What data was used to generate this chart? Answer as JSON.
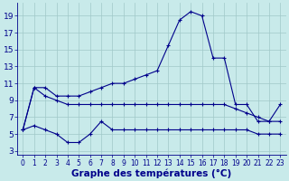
{
  "xlabel": "Graphe des températures (°C)",
  "bg_color": "#c8eaea",
  "grid_color": "#a0c8c8",
  "line_color": "#00008b",
  "yticks": [
    3,
    5,
    7,
    9,
    11,
    13,
    15,
    17,
    19
  ],
  "xticks": [
    0,
    1,
    2,
    3,
    4,
    5,
    6,
    7,
    8,
    9,
    10,
    11,
    12,
    13,
    14,
    15,
    16,
    17,
    18,
    19,
    20,
    21,
    22,
    23
  ],
  "ylim": [
    2.5,
    20.5
  ],
  "xlim": [
    -0.5,
    23.5
  ],
  "line1": [
    5.5,
    10.5,
    10.5,
    9.5,
    9.5,
    9.5,
    10.0,
    10.5,
    11.0,
    11.0,
    11.5,
    12.0,
    12.5,
    15.5,
    18.5,
    19.5,
    19.0,
    14.0,
    14.0,
    8.5,
    8.5,
    6.5,
    6.5,
    8.5
  ],
  "line2": [
    5.5,
    10.5,
    9.5,
    9.0,
    8.5,
    8.5,
    8.5,
    8.5,
    8.5,
    8.5,
    8.5,
    8.5,
    8.5,
    8.5,
    8.5,
    8.5,
    8.5,
    8.5,
    8.5,
    8.0,
    7.5,
    7.0,
    6.5,
    6.5
  ],
  "line3": [
    5.5,
    6.0,
    5.5,
    5.0,
    4.0,
    4.0,
    5.0,
    6.5,
    5.5,
    5.5,
    5.5,
    5.5,
    5.5,
    5.5,
    5.5,
    5.5,
    5.5,
    5.5,
    5.5,
    5.5,
    5.5,
    5.0,
    5.0,
    5.0
  ],
  "xlabel_fontsize": 7.5,
  "ytick_fontsize": 6.5,
  "xtick_fontsize": 5.5
}
